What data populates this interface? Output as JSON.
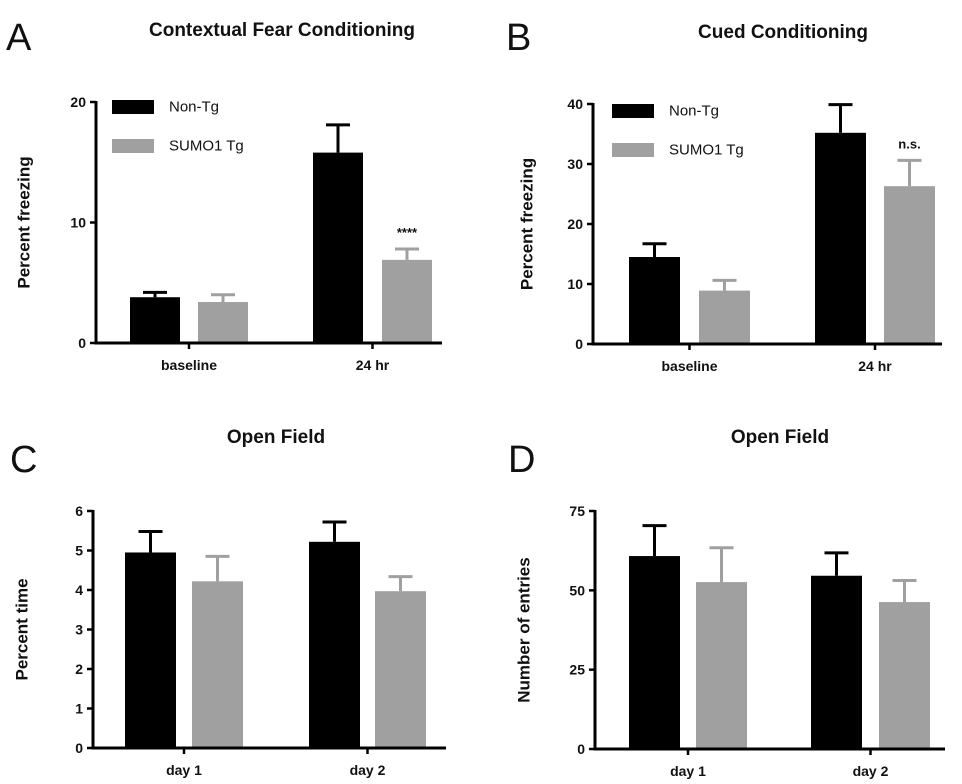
{
  "figure": {
    "background": "#ffffff"
  },
  "colors": {
    "Non-Tg": "#000000",
    "SUMO1 Tg": "#a0a0a0"
  },
  "chart_data": [
    {
      "panel": "A",
      "type": "bar",
      "title": "Contextual Fear Conditioning",
      "xlabel": "",
      "ylabel": "Percent freezing",
      "categories": [
        "baseline",
        "24 hr"
      ],
      "ylim": [
        0,
        20
      ],
      "yticks": [
        0,
        10,
        20
      ],
      "grid": false,
      "legend": "top-left",
      "series": [
        {
          "name": "Non-Tg",
          "values": [
            3.8,
            15.8
          ],
          "errors": [
            0.4,
            2.3
          ]
        },
        {
          "name": "SUMO1 Tg",
          "values": [
            3.4,
            6.9
          ],
          "errors": [
            0.6,
            0.9
          ]
        }
      ],
      "annotations": [
        {
          "series": 1,
          "category": 1,
          "text": "****"
        }
      ]
    },
    {
      "panel": "B",
      "type": "bar",
      "title": "Cued Conditioning",
      "xlabel": "",
      "ylabel": "Percent freezing",
      "categories": [
        "baseline",
        "24 hr"
      ],
      "ylim": [
        0,
        40
      ],
      "yticks": [
        0,
        10,
        20,
        30,
        40
      ],
      "grid": false,
      "legend": "top-left",
      "series": [
        {
          "name": "Non-Tg",
          "values": [
            14.5,
            35.2
          ],
          "errors": [
            2.2,
            4.7
          ]
        },
        {
          "name": "SUMO1 Tg",
          "values": [
            8.9,
            26.3
          ],
          "errors": [
            1.7,
            4.3
          ]
        }
      ],
      "annotations": [
        {
          "series": 1,
          "category": 1,
          "text": "n.s."
        }
      ]
    },
    {
      "panel": "C",
      "type": "bar",
      "title": "Open  Field",
      "xlabel": "",
      "ylabel": "Percent time",
      "categories": [
        "day 1",
        "day 2"
      ],
      "ylim": [
        0,
        6
      ],
      "yticks": [
        0,
        1,
        2,
        3,
        4,
        5,
        6
      ],
      "grid": false,
      "legend": "none",
      "series": [
        {
          "name": "Non-Tg",
          "values": [
            4.95,
            5.22
          ],
          "errors": [
            0.53,
            0.5
          ]
        },
        {
          "name": "SUMO1 Tg",
          "values": [
            4.22,
            3.97
          ],
          "errors": [
            0.63,
            0.37
          ]
        }
      ],
      "annotations": []
    },
    {
      "panel": "D",
      "type": "bar",
      "title": "Open  Field",
      "xlabel": "",
      "ylabel": "Number of entries",
      "categories": [
        "day 1",
        "day 2"
      ],
      "ylim": [
        0,
        75
      ],
      "yticks": [
        0,
        25,
        50,
        75
      ],
      "grid": false,
      "legend": "none",
      "series": [
        {
          "name": "Non-Tg",
          "values": [
            60.8,
            54.6
          ],
          "errors": [
            9.6,
            7.2
          ]
        },
        {
          "name": "SUMO1 Tg",
          "values": [
            52.6,
            46.3
          ],
          "errors": [
            10.8,
            6.8
          ]
        }
      ],
      "annotations": []
    }
  ]
}
